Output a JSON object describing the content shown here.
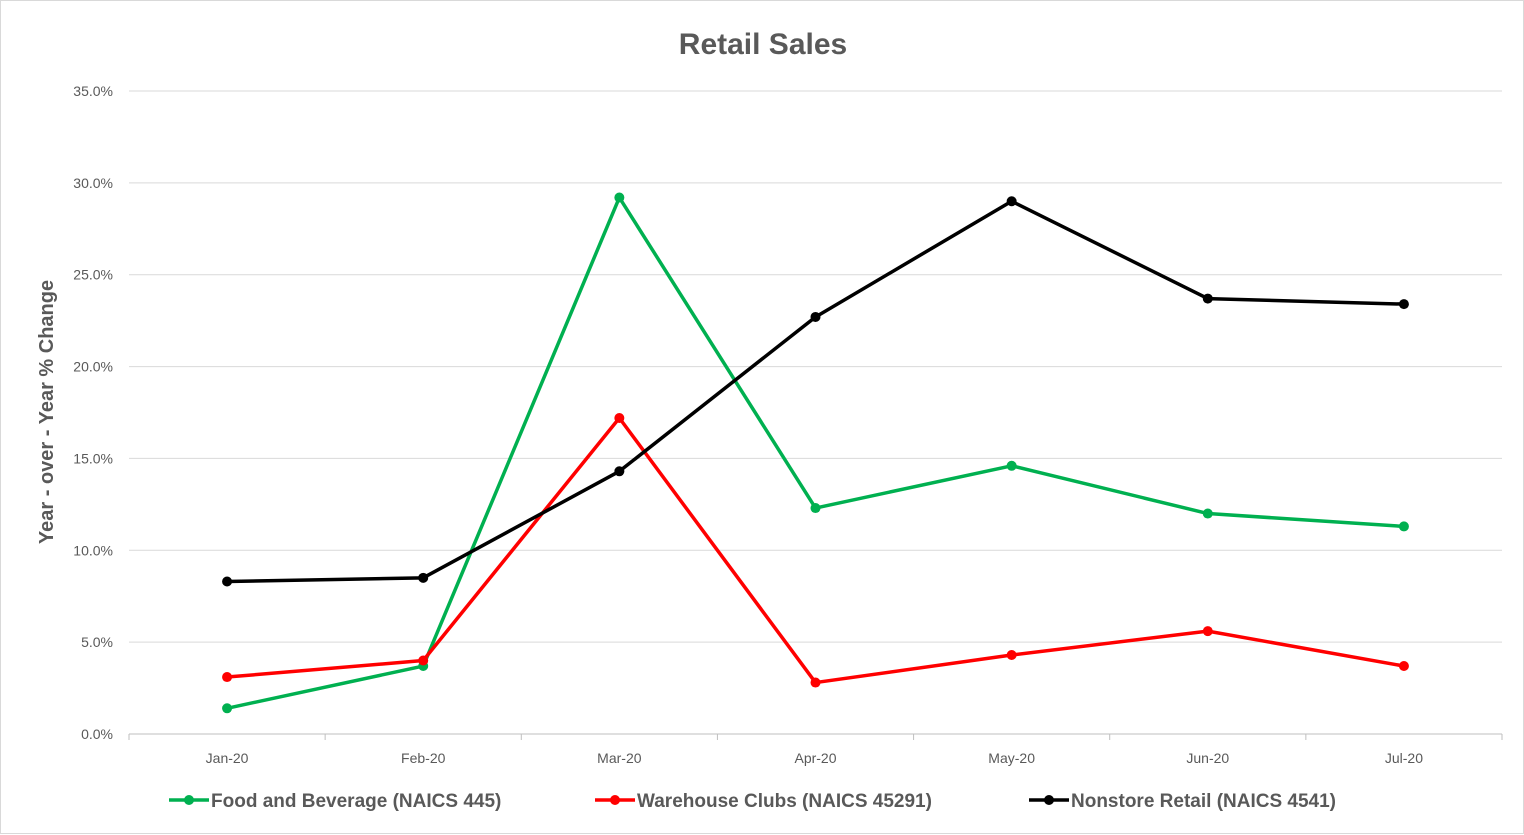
{
  "chart_data": {
    "type": "line",
    "title": "Retail Sales",
    "xlabel": "",
    "ylabel": "Year - over - Year % Change",
    "categories": [
      "Jan-20",
      "Feb-20",
      "Mar-20",
      "Apr-20",
      "May-20",
      "Jun-20",
      "Jul-20"
    ],
    "ylim": [
      0,
      35
    ],
    "yticks": [
      0,
      5,
      10,
      15,
      20,
      25,
      30,
      35
    ],
    "ytick_labels": [
      "0.0%",
      "5.0%",
      "10.0%",
      "15.0%",
      "20.0%",
      "25.0%",
      "30.0%",
      "35.0%"
    ],
    "grid": true,
    "legend_position": "bottom",
    "series": [
      {
        "name": "Food and Beverage  (NAICS 445)",
        "color": "#00b050",
        "values": [
          1.4,
          3.7,
          29.2,
          12.3,
          14.6,
          12.0,
          11.3
        ]
      },
      {
        "name": "Warehouse Clubs  (NAICS 45291)",
        "color": "#ff0000",
        "values": [
          3.1,
          4.0,
          17.2,
          2.8,
          4.3,
          5.6,
          3.7
        ]
      },
      {
        "name": "Nonstore Retail (NAICS 4541)",
        "color": "#000000",
        "values": [
          8.3,
          8.5,
          14.3,
          22.7,
          29.0,
          23.7,
          23.4
        ]
      }
    ]
  }
}
